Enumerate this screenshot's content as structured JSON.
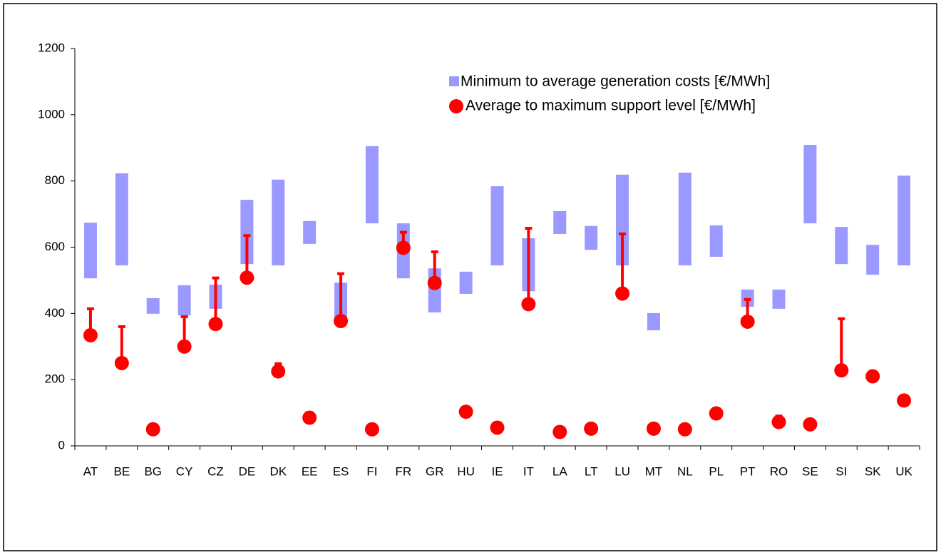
{
  "chart_data": {
    "type": "range-bar-error",
    "categories": [
      "AT",
      "BE",
      "BG",
      "CY",
      "CZ",
      "DE",
      "DK",
      "EE",
      "ES",
      "FI",
      "FR",
      "GR",
      "HU",
      "IE",
      "IT",
      "LA",
      "LT",
      "LU",
      "MT",
      "NL",
      "PL",
      "PT",
      "RO",
      "SE",
      "SI",
      "SK",
      "UK"
    ],
    "series": [
      {
        "name": "Minimum to average generation costs [€/MWh]",
        "color": "#9999ff",
        "low": [
          506,
          545,
          399,
          394,
          414,
          549,
          545,
          610,
          377,
          672,
          506,
          403,
          459,
          545,
          467,
          640,
          592,
          545,
          349,
          545,
          571,
          420,
          414,
          672,
          549,
          517,
          545
        ],
        "high": [
          674,
          823,
          446,
          485,
          487,
          743,
          804,
          679,
          493,
          905,
          672,
          536,
          526,
          784,
          627,
          709,
          664,
          819,
          401,
          825,
          666,
          472,
          472,
          909,
          661,
          607,
          816
        ]
      },
      {
        "name": "Average to maximum support level [€/MWh]",
        "color": "#ff0000",
        "values": [
          334,
          250,
          50,
          300,
          368,
          508,
          225,
          85,
          377,
          50,
          598,
          492,
          103,
          55,
          428,
          42,
          52,
          460,
          52,
          50,
          98,
          375,
          72,
          65,
          228,
          210,
          137
        ],
        "max": [
          414,
          360,
          50,
          390,
          507,
          635,
          248,
          85,
          520,
          50,
          645,
          586,
          103,
          55,
          657,
          42,
          52,
          640,
          52,
          50,
          98,
          442,
          90,
          65,
          384,
          210,
          137
        ]
      }
    ],
    "ylim": [
      0,
      1200
    ],
    "yticks": [
      0,
      200,
      400,
      600,
      800,
      1000,
      1200
    ]
  }
}
